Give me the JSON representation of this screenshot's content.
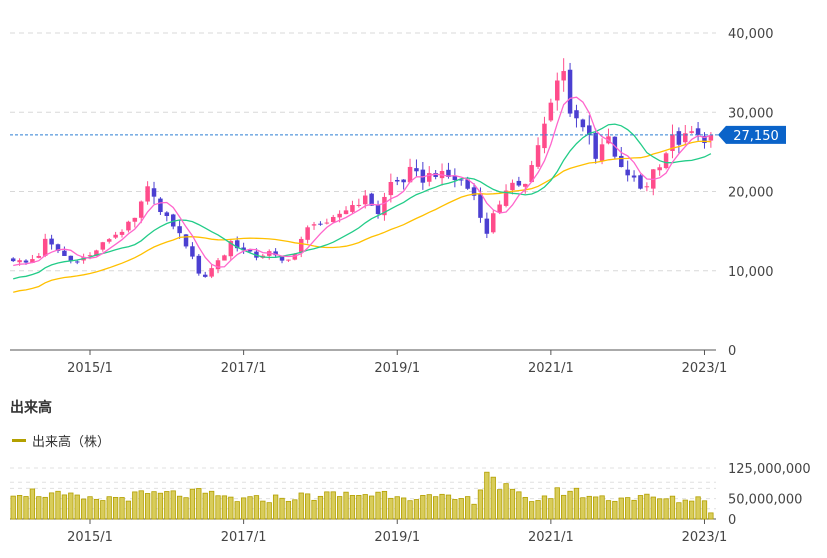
{
  "volume_section": {
    "title": "出来高",
    "legend_label": "出来高（株）",
    "legend_color": "#b3a000"
  },
  "colors": {
    "up": "#ff4c8b",
    "down": "#4b3fd1",
    "ma_short": "#ff66cc",
    "ma_mid": "#22cc88",
    "ma_long": "#ffc000",
    "price_tag": "#0a63c9",
    "volume": "#b3a000"
  },
  "chart_data": [
    {
      "type": "candlestick",
      "title": "",
      "x_ticks": [
        "2015/1",
        "2017/1",
        "2019/1",
        "2021/1",
        "2023/1"
      ],
      "y_ticks": [
        "40,000",
        "30,000",
        "20,000",
        "10,000",
        "0"
      ],
      "ylim": [
        0,
        40000
      ],
      "grid": true,
      "current_price_label": "27,150",
      "current_price": 27150,
      "anchors_monthly_close": [
        [
          "2014-01",
          11400
        ],
        [
          "2014-03",
          11000
        ],
        [
          "2014-05",
          12000
        ],
        [
          "2014-06",
          13800
        ],
        [
          "2014-08",
          12500
        ],
        [
          "2014-10",
          11200
        ],
        [
          "2015-01",
          11900
        ],
        [
          "2015-04",
          14100
        ],
        [
          "2015-06",
          15100
        ],
        [
          "2015-08",
          16500
        ],
        [
          "2015-09",
          18400
        ],
        [
          "2015-10",
          20300
        ],
        [
          "2015-11",
          19800
        ],
        [
          "2015-12",
          17300
        ],
        [
          "2016-02",
          15800
        ],
        [
          "2016-04",
          13300
        ],
        [
          "2016-06",
          9800
        ],
        [
          "2016-07",
          9300
        ],
        [
          "2016-08",
          10300
        ],
        [
          "2016-09",
          11400
        ],
        [
          "2016-10",
          12000
        ],
        [
          "2016-11",
          13700
        ],
        [
          "2017-01",
          12500
        ],
        [
          "2017-03",
          11800
        ],
        [
          "2017-05",
          12300
        ],
        [
          "2017-07",
          11200
        ],
        [
          "2017-09",
          12100
        ],
        [
          "2017-10",
          13800
        ],
        [
          "2017-11",
          15300
        ],
        [
          "2017-12",
          16200
        ],
        [
          "2018-02",
          15700
        ],
        [
          "2018-04",
          17200
        ],
        [
          "2018-06",
          18300
        ],
        [
          "2018-08",
          19100
        ],
        [
          "2018-09",
          18400
        ],
        [
          "2018-10",
          17300
        ],
        [
          "2018-12",
          21100
        ],
        [
          "2019-02",
          21400
        ],
        [
          "2019-03",
          22600
        ],
        [
          "2019-05",
          21500
        ],
        [
          "2019-06",
          22100
        ],
        [
          "2019-07",
          22300
        ],
        [
          "2019-09",
          21800
        ],
        [
          "2019-11",
          21300
        ],
        [
          "2020-01",
          19500
        ],
        [
          "2020-02",
          17100
        ],
        [
          "2020-03",
          14500
        ],
        [
          "2020-04",
          17400
        ],
        [
          "2020-06",
          19800
        ],
        [
          "2020-07",
          20600
        ],
        [
          "2020-09",
          21400
        ],
        [
          "2020-10",
          23300
        ],
        [
          "2020-11",
          26000
        ],
        [
          "2020-12",
          28300
        ],
        [
          "2021-01",
          30800
        ],
        [
          "2021-02",
          33800
        ],
        [
          "2021-03",
          35000
        ],
        [
          "2021-04",
          30400
        ],
        [
          "2021-05",
          29300
        ],
        [
          "2021-06",
          28000
        ],
        [
          "2021-07",
          27600
        ],
        [
          "2021-08",
          24400
        ],
        [
          "2021-09",
          25400
        ],
        [
          "2021-10",
          26800
        ],
        [
          "2021-11",
          24200
        ],
        [
          "2021-12",
          22700
        ],
        [
          "2022-01",
          22200
        ],
        [
          "2022-02",
          21400
        ],
        [
          "2022-03",
          20400
        ],
        [
          "2022-04",
          20900
        ],
        [
          "2022-05",
          22700
        ],
        [
          "2022-06",
          23600
        ],
        [
          "2022-07",
          25000
        ],
        [
          "2022-08",
          26700
        ],
        [
          "2022-09",
          26300
        ],
        [
          "2022-10",
          26800
        ],
        [
          "2022-11",
          27400
        ],
        [
          "2022-12",
          26800
        ],
        [
          "2023-01",
          26700
        ],
        [
          "2023-02",
          27150
        ]
      ],
      "moving_averages": [
        "ma_short",
        "ma_mid",
        "ma_long"
      ]
    },
    {
      "type": "bar",
      "title": "出来高",
      "series_label": "出来高（株）",
      "x_ticks": [
        "2015/1",
        "2017/1",
        "2019/1",
        "2021/1",
        "2023/1"
      ],
      "y_ticks": [
        "125,000,000",
        "50,000,000",
        "0"
      ],
      "ylim": [
        0,
        125000000
      ],
      "anchors_monthly_volume": [
        [
          "2014-01",
          68000000
        ],
        [
          "2014-06",
          60000000
        ],
        [
          "2015-01",
          45000000
        ],
        [
          "2015-10",
          58000000
        ],
        [
          "2016-06",
          60000000
        ],
        [
          "2017-01",
          45000000
        ],
        [
          "2017-12",
          55000000
        ],
        [
          "2018-12",
          62000000
        ],
        [
          "2019-06",
          50000000
        ],
        [
          "2020-01",
          45000000
        ],
        [
          "2020-03",
          118000000
        ],
        [
          "2020-05",
          80000000
        ],
        [
          "2020-09",
          45000000
        ],
        [
          "2021-01",
          55000000
        ],
        [
          "2021-03",
          70000000
        ],
        [
          "2021-09",
          50000000
        ],
        [
          "2022-03",
          52000000
        ],
        [
          "2022-09",
          45000000
        ],
        [
          "2023-01",
          50000000
        ],
        [
          "2023-02",
          15000000
        ]
      ]
    }
  ]
}
